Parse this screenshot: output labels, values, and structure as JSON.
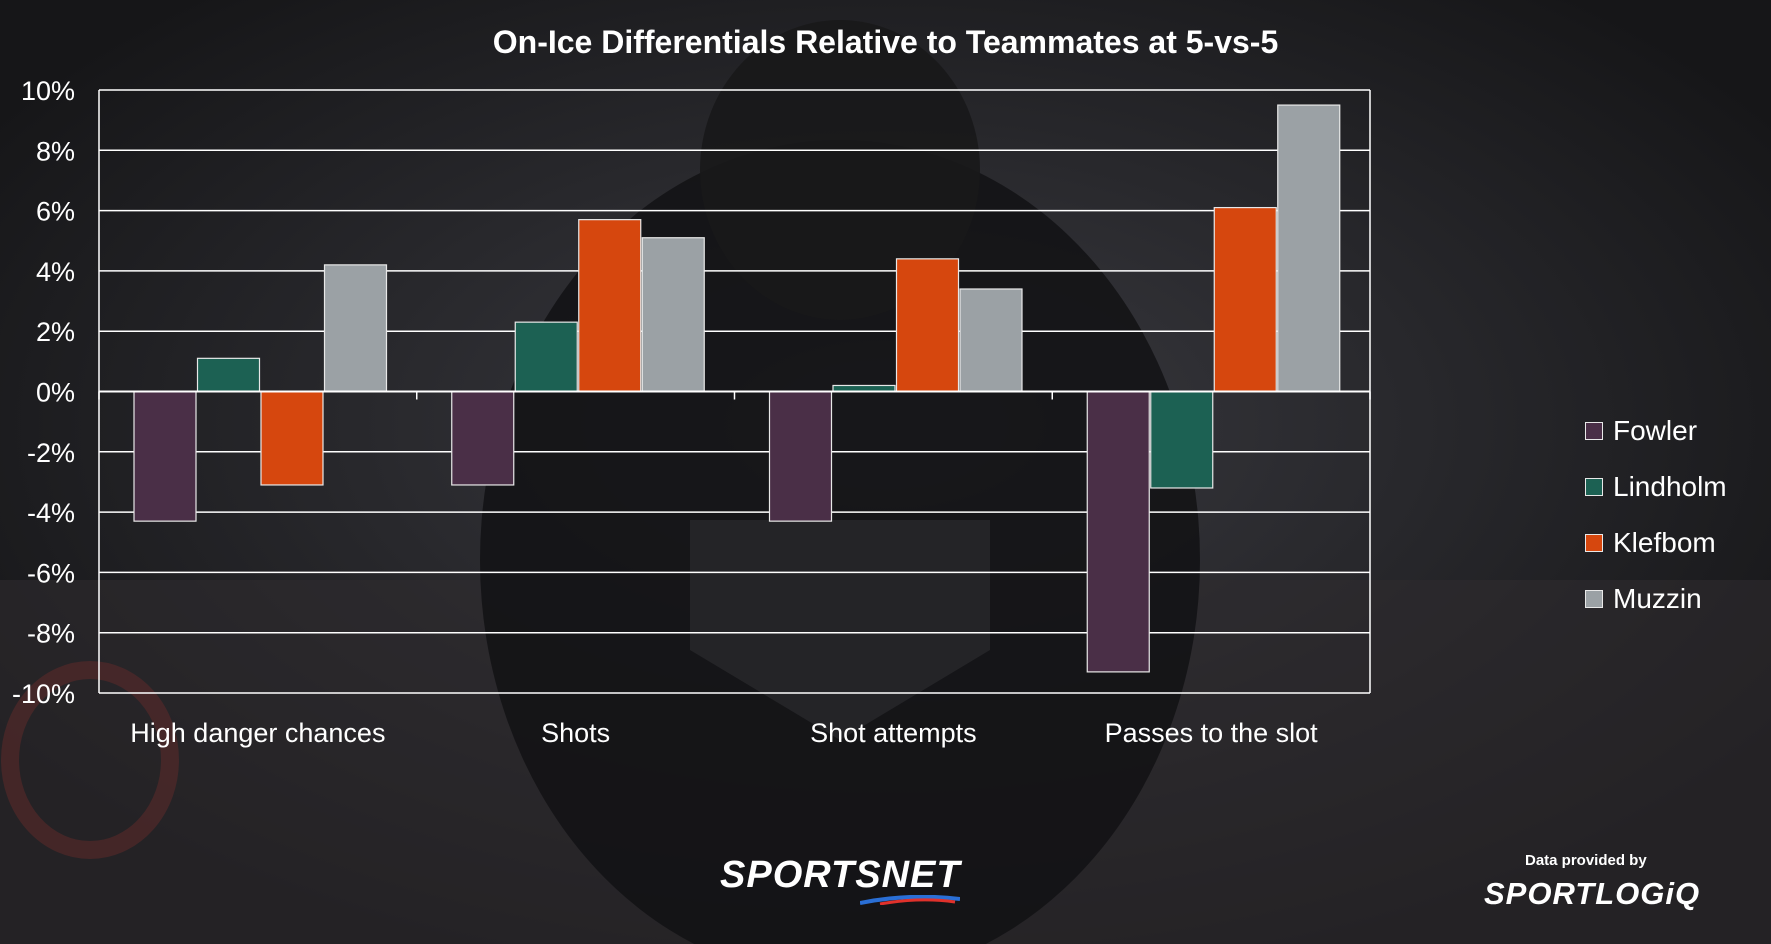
{
  "chart_data": {
    "type": "bar",
    "title": "On-Ice Differentials Relative to Teammates at 5-vs-5",
    "categories": [
      "High danger chances",
      "Shots",
      "Shot attempts",
      "Passes to the slot"
    ],
    "series": [
      {
        "name": "Fowler",
        "color": "#4a2f47",
        "values": [
          -4.3,
          -3.1,
          -4.3,
          -9.3
        ]
      },
      {
        "name": "Lindholm",
        "color": "#1c6153",
        "values": [
          1.1,
          2.3,
          0.2,
          -3.2
        ]
      },
      {
        "name": "Klefbom",
        "color": "#d6470e",
        "values": [
          -3.1,
          5.7,
          4.4,
          6.1
        ]
      },
      {
        "name": "Muzzin",
        "color": "#9ba1a5",
        "values": [
          4.2,
          5.1,
          3.4,
          9.5
        ]
      }
    ],
    "yticks": [
      "10%",
      "8%",
      "6%",
      "4%",
      "2%",
      "0%",
      "-2%",
      "-4%",
      "-6%",
      "-8%",
      "-10%"
    ],
    "ylim": [
      -10,
      10
    ],
    "grid": true,
    "legend_position": "right"
  },
  "footer": {
    "brand": "SPORTSNET",
    "data_credit": "Data provided by",
    "data_provider": "SPORTLOGiQ"
  }
}
